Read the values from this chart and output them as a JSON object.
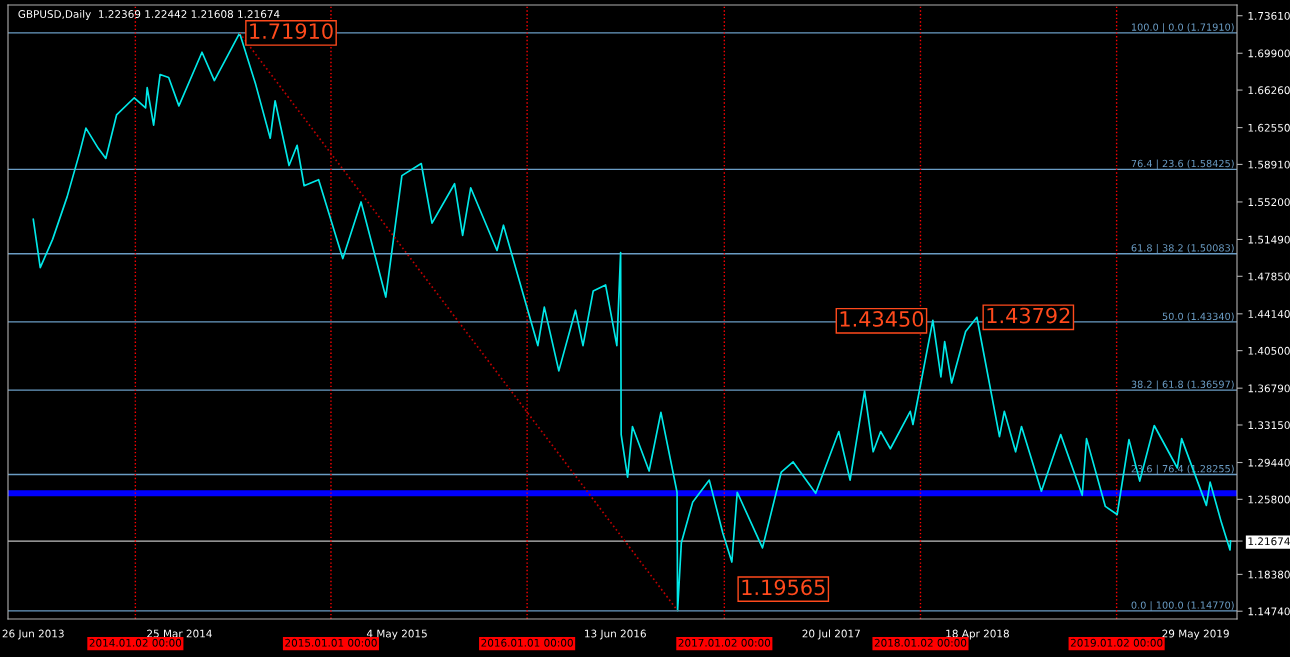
{
  "chart_data": {
    "type": "line",
    "title": "GBPUSD,Daily  1.22369 1.22442 1.21608 1.21674",
    "xlim": [
      "2013-05-10",
      "2019-08-14"
    ],
    "ylim": [
      1.1397,
      1.7467
    ],
    "xticks": [
      {
        "value": "2013-06-26",
        "label": "26 Jun 2013"
      },
      {
        "value": "2014-03-25",
        "label": "25 Mar 2014"
      },
      {
        "value": "2015-05-04",
        "label": "4 May 2015"
      },
      {
        "value": "2016-06-13",
        "label": "13 Jun 2016"
      },
      {
        "value": "2017-07-20",
        "label": "20 Jul 2017"
      },
      {
        "value": "2018-04-18",
        "label": "18 Apr 2018"
      },
      {
        "value": "2019-05-29",
        "label": "29 May 2019"
      }
    ],
    "yticks": [
      {
        "value": 1.7361,
        "label": "1.73610"
      },
      {
        "value": 1.699,
        "label": "1.69900"
      },
      {
        "value": 1.6626,
        "label": "1.66260"
      },
      {
        "value": 1.6255,
        "label": "1.62550"
      },
      {
        "value": 1.5891,
        "label": "1.58910"
      },
      {
        "value": 1.552,
        "label": "1.55200"
      },
      {
        "value": 1.5149,
        "label": "1.51490"
      },
      {
        "value": 1.4785,
        "label": "1.47850"
      },
      {
        "value": 1.4414,
        "label": "1.44140"
      },
      {
        "value": 1.405,
        "label": "1.40500"
      },
      {
        "value": 1.3679,
        "label": "1.36790"
      },
      {
        "value": 1.3315,
        "label": "1.33150"
      },
      {
        "value": 1.2944,
        "label": "1.29440"
      },
      {
        "value": 1.258,
        "label": "1.25800"
      },
      {
        "value": 1.21674,
        "label": "1.21674"
      },
      {
        "value": 1.1838,
        "label": "1.18380"
      },
      {
        "value": 1.1474,
        "label": "1.14740"
      }
    ],
    "series": [
      {
        "color": "#00e8e8",
        "x": [
          "2013-06-26",
          "2013-07-09",
          "2013-08-01",
          "2013-08-28",
          "2013-09-20",
          "2013-10-02",
          "2013-10-25",
          "2013-11-08",
          "2013-11-28",
          "2013-12-31",
          "2014-01-21",
          "2014-01-24",
          "2014-02-05",
          "2014-02-17",
          "2014-03-05",
          "2014-03-24",
          "2014-05-06",
          "2014-05-29",
          "2014-07-15",
          "2014-08-14",
          "2014-09-10",
          "2014-09-19",
          "2014-10-15",
          "2014-10-30",
          "2014-11-12",
          "2014-12-09",
          "2015-01-23",
          "2015-02-26",
          "2015-04-13",
          "2015-05-13",
          "2015-06-18",
          "2015-07-08",
          "2015-08-19",
          "2015-09-03",
          "2015-09-18",
          "2015-11-06",
          "2015-11-18",
          "2016-01-21",
          "2016-02-02",
          "2016-02-29",
          "2016-03-31",
          "2016-04-14",
          "2016-05-03",
          "2016-05-26",
          "2016-06-16",
          "2016-06-23",
          "2016-06-24",
          "2016-07-06",
          "2016-07-15",
          "2016-08-15",
          "2016-09-06",
          "2016-10-06",
          "2016-10-07",
          "2016-10-14",
          "2016-11-04",
          "2016-12-05",
          "2016-12-30",
          "2017-01-16",
          "2017-01-26",
          "2017-03-14",
          "2017-04-18",
          "2017-05-10",
          "2017-06-21",
          "2017-08-03",
          "2017-08-24",
          "2017-09-20",
          "2017-10-06",
          "2017-10-20",
          "2017-11-07",
          "2017-12-14",
          "2017-12-19",
          "2018-01-25",
          "2018-02-09",
          "2018-02-16",
          "2018-03-01",
          "2018-03-27",
          "2018-04-17",
          "2018-05-29",
          "2018-06-07",
          "2018-06-28",
          "2018-07-09",
          "2018-08-15",
          "2018-09-20",
          "2018-10-30",
          "2018-11-07",
          "2018-12-12",
          "2019-01-03",
          "2019-01-25",
          "2019-02-14",
          "2019-03-13",
          "2019-04-25",
          "2019-05-03",
          "2019-06-18",
          "2019-06-25",
          "2019-07-16",
          "2019-08-01",
          "2019-08-02"
        ],
        "values": [
          1.535,
          1.487,
          1.515,
          1.557,
          1.6,
          1.625,
          1.605,
          1.595,
          1.638,
          1.655,
          1.645,
          1.665,
          1.628,
          1.678,
          1.675,
          1.647,
          1.7,
          1.672,
          1.719,
          1.668,
          1.615,
          1.652,
          1.588,
          1.608,
          1.568,
          1.574,
          1.496,
          1.552,
          1.458,
          1.578,
          1.59,
          1.531,
          1.57,
          1.519,
          1.566,
          1.504,
          1.529,
          1.41,
          1.448,
          1.385,
          1.445,
          1.41,
          1.464,
          1.47,
          1.41,
          1.502,
          1.322,
          1.28,
          1.33,
          1.286,
          1.344,
          1.265,
          1.148,
          1.215,
          1.255,
          1.277,
          1.225,
          1.196,
          1.265,
          1.21,
          1.285,
          1.295,
          1.264,
          1.325,
          1.277,
          1.365,
          1.305,
          1.325,
          1.308,
          1.345,
          1.332,
          1.435,
          1.379,
          1.414,
          1.373,
          1.424,
          1.438,
          1.32,
          1.345,
          1.305,
          1.33,
          1.266,
          1.322,
          1.262,
          1.318,
          1.251,
          1.243,
          1.317,
          1.276,
          1.331,
          1.289,
          1.318,
          1.252,
          1.275,
          1.235,
          1.208,
          1.217
        ]
      },
      {
        "color": "#c00000",
        "line_style": "dotted",
        "x": [
          "2014-07-15",
          "2016-10-07"
        ],
        "values": [
          1.719,
          1.148
        ]
      }
    ],
    "ref_lines": [
      {
        "axis": "y",
        "value": 1.7191,
        "label": "100.0 | 0.0 (1.71910)",
        "color": "#6a9cc4"
      },
      {
        "axis": "y",
        "value": 1.58425,
        "label": "76.4 | 23.6 (1.58425)",
        "color": "#6a9cc4"
      },
      {
        "axis": "y",
        "value": 1.50083,
        "label": "61.8 | 38.2 (1.50083)",
        "color": "#6a9cc4"
      },
      {
        "axis": "y",
        "value": 1.4334,
        "label": "50.0 (1.43340)",
        "color": "#6a9cc4"
      },
      {
        "axis": "y",
        "value": 1.36597,
        "label": "38.2 | 61.8 (1.36597)",
        "color": "#6a9cc4"
      },
      {
        "axis": "y",
        "value": 1.28255,
        "label": "23.6 | 76.4 (1.28255)",
        "color": "#6a9cc4"
      },
      {
        "axis": "y",
        "value": 1.1477,
        "label": "0.0 | 100.0 (1.14770)",
        "color": "#6a9cc4"
      },
      {
        "axis": "y",
        "value": 1.21674,
        "color": "#c0c0c0"
      },
      {
        "axis": "x",
        "value": "2014-01-02",
        "label": "2014.01.02 00:00",
        "color": "#ff0000",
        "line_style": "dotted"
      },
      {
        "axis": "x",
        "value": "2015-01-01",
        "label": "2015.01.01 00:00",
        "color": "#ff0000",
        "line_style": "dotted"
      },
      {
        "axis": "x",
        "value": "2016-01-01",
        "label": "2016.01.01 00:00",
        "color": "#ff0000",
        "line_style": "dotted"
      },
      {
        "axis": "x",
        "value": "2017-01-02",
        "label": "2017.01.02 00:00",
        "color": "#ff0000",
        "line_style": "dotted"
      },
      {
        "axis": "x",
        "value": "2018-01-02",
        "label": "2018.01.02 00:00",
        "color": "#ff0000",
        "line_style": "dotted"
      },
      {
        "axis": "x",
        "value": "2019-01-02",
        "label": "2019.01.02 00:00",
        "color": "#ff0000",
        "line_style": "dotted"
      }
    ],
    "bands": [
      {
        "axis": "y",
        "from": 1.261,
        "to": 1.267,
        "color": "#0000ff"
      }
    ],
    "annotations": [
      {
        "text": "1.71910",
        "x": "2014-07-15",
        "y": 1.7191
      },
      {
        "text": "1.19565",
        "x": "2017-01-16",
        "y": 1.19565
      },
      {
        "text": "1.43450",
        "x": "2018-01-25",
        "y": 1.4345
      },
      {
        "text": "1.43792",
        "x": "2018-04-17",
        "y": 1.43792
      }
    ]
  }
}
